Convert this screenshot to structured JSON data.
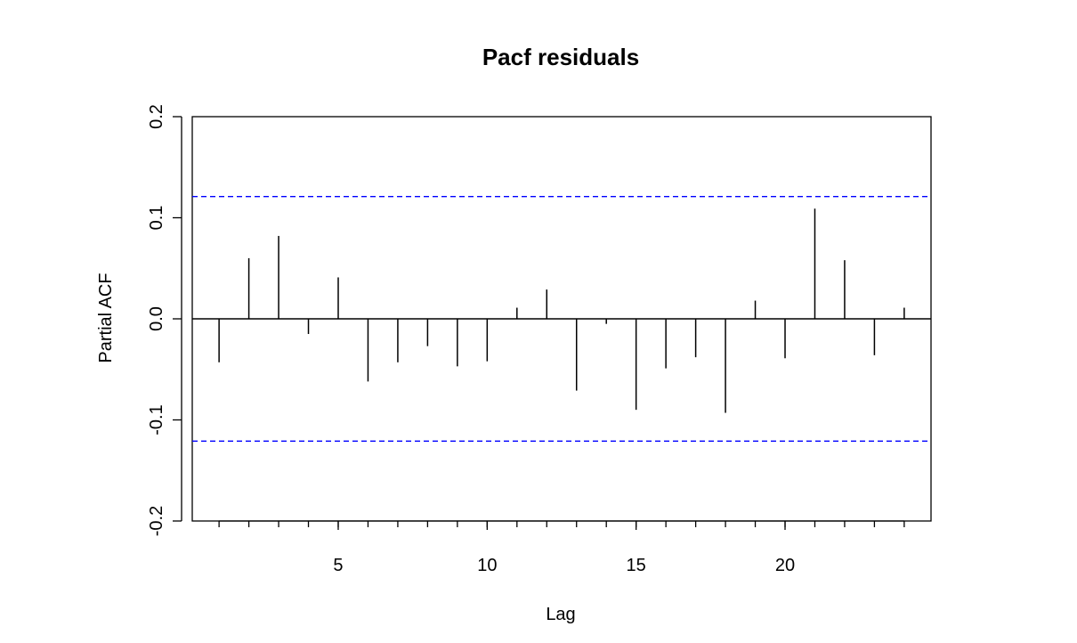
{
  "chart_data": {
    "type": "bar",
    "title": "Pacf residuals",
    "xlabel": "Lag",
    "ylabel": "Partial ACF",
    "xlim": [
      0.1,
      24.9
    ],
    "ylim": [
      -0.2,
      0.2
    ],
    "x_ticks": [
      5,
      10,
      15,
      20
    ],
    "x_tick_labels": [
      "5",
      "10",
      "15",
      "20"
    ],
    "y_ticks": [
      -0.2,
      -0.1,
      0.0,
      0.1,
      0.2
    ],
    "y_tick_labels": [
      "-0.2",
      "-0.1",
      "0.0",
      "0.1",
      "0.2"
    ],
    "lags": [
      1,
      2,
      3,
      4,
      5,
      6,
      7,
      8,
      9,
      10,
      11,
      12,
      13,
      14,
      15,
      16,
      17,
      18,
      19,
      20,
      21,
      22,
      23,
      24
    ],
    "values": [
      -0.043,
      0.06,
      0.082,
      -0.015,
      0.041,
      -0.062,
      -0.043,
      -0.027,
      -0.047,
      -0.042,
      0.011,
      0.029,
      -0.071,
      -0.005,
      -0.09,
      -0.049,
      -0.038,
      -0.093,
      0.018,
      -0.039,
      0.109,
      0.058,
      -0.036,
      0.011
    ],
    "confidence_limit": 0.121,
    "confidence_color": "#0000ff",
    "line_color": "#000000",
    "grid": false
  }
}
